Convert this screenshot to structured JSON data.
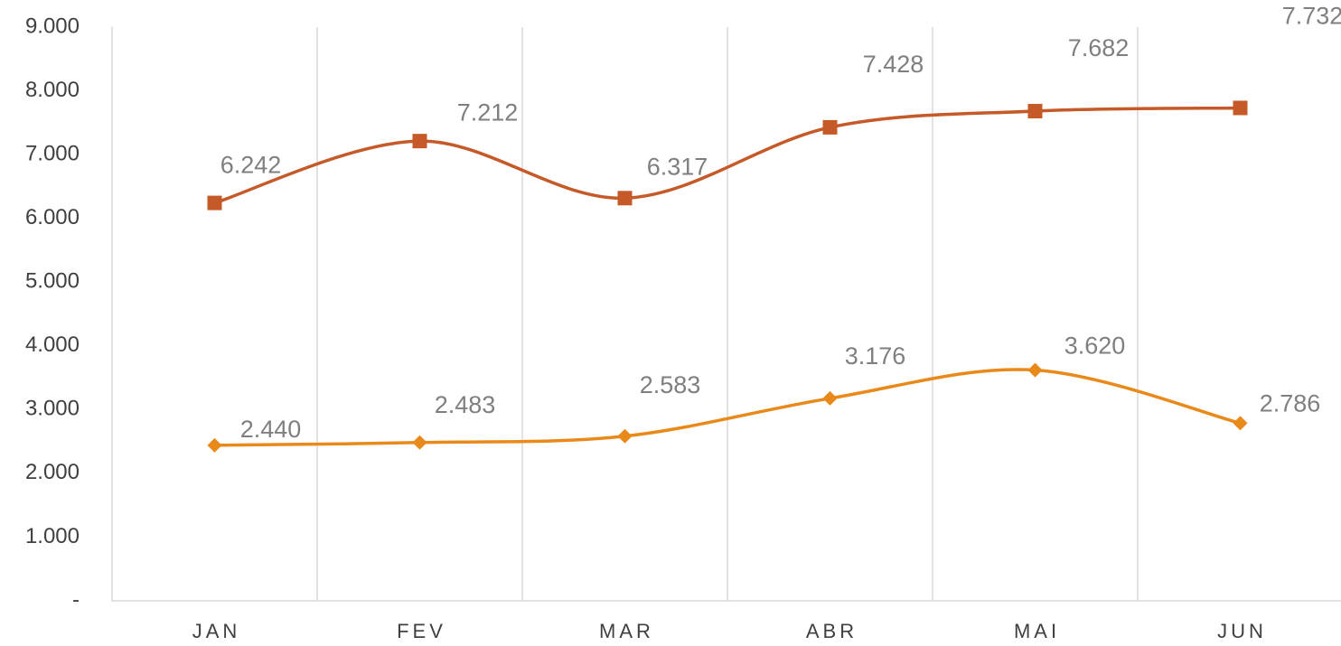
{
  "chart_data": {
    "type": "line",
    "categories": [
      "JAN",
      "FEV",
      "MAR",
      "ABR",
      "MAI",
      "JUN"
    ],
    "series": [
      {
        "color": "#c55a28",
        "marker": "square",
        "values": [
          6242,
          7212,
          6317,
          7428,
          7682,
          7732
        ],
        "value_labels": [
          "6.242",
          "7.212",
          "6.317",
          "7.428",
          "7.682",
          "7.732"
        ]
      },
      {
        "color": "#e8891a",
        "marker": "diamond",
        "values": [
          2440,
          2483,
          2583,
          3176,
          3620,
          2786
        ],
        "value_labels": [
          "2.440",
          "2.483",
          "2.583",
          "3.176",
          "3.620",
          "2.786"
        ]
      }
    ],
    "ylim": [
      0,
      9000
    ],
    "yticks": [
      {
        "value": 0,
        "label": "-"
      },
      {
        "value": 1000,
        "label": "1.000"
      },
      {
        "value": 2000,
        "label": "2.000"
      },
      {
        "value": 3000,
        "label": "3.000"
      },
      {
        "value": 4000,
        "label": "4.000"
      },
      {
        "value": 5000,
        "label": "5.000"
      },
      {
        "value": 6000,
        "label": "6.000"
      },
      {
        "value": 7000,
        "label": "7.000"
      },
      {
        "value": 8000,
        "label": "8.000"
      },
      {
        "value": 9000,
        "label": "9.000"
      }
    ],
    "smooth": true,
    "vertical_grid": true
  }
}
